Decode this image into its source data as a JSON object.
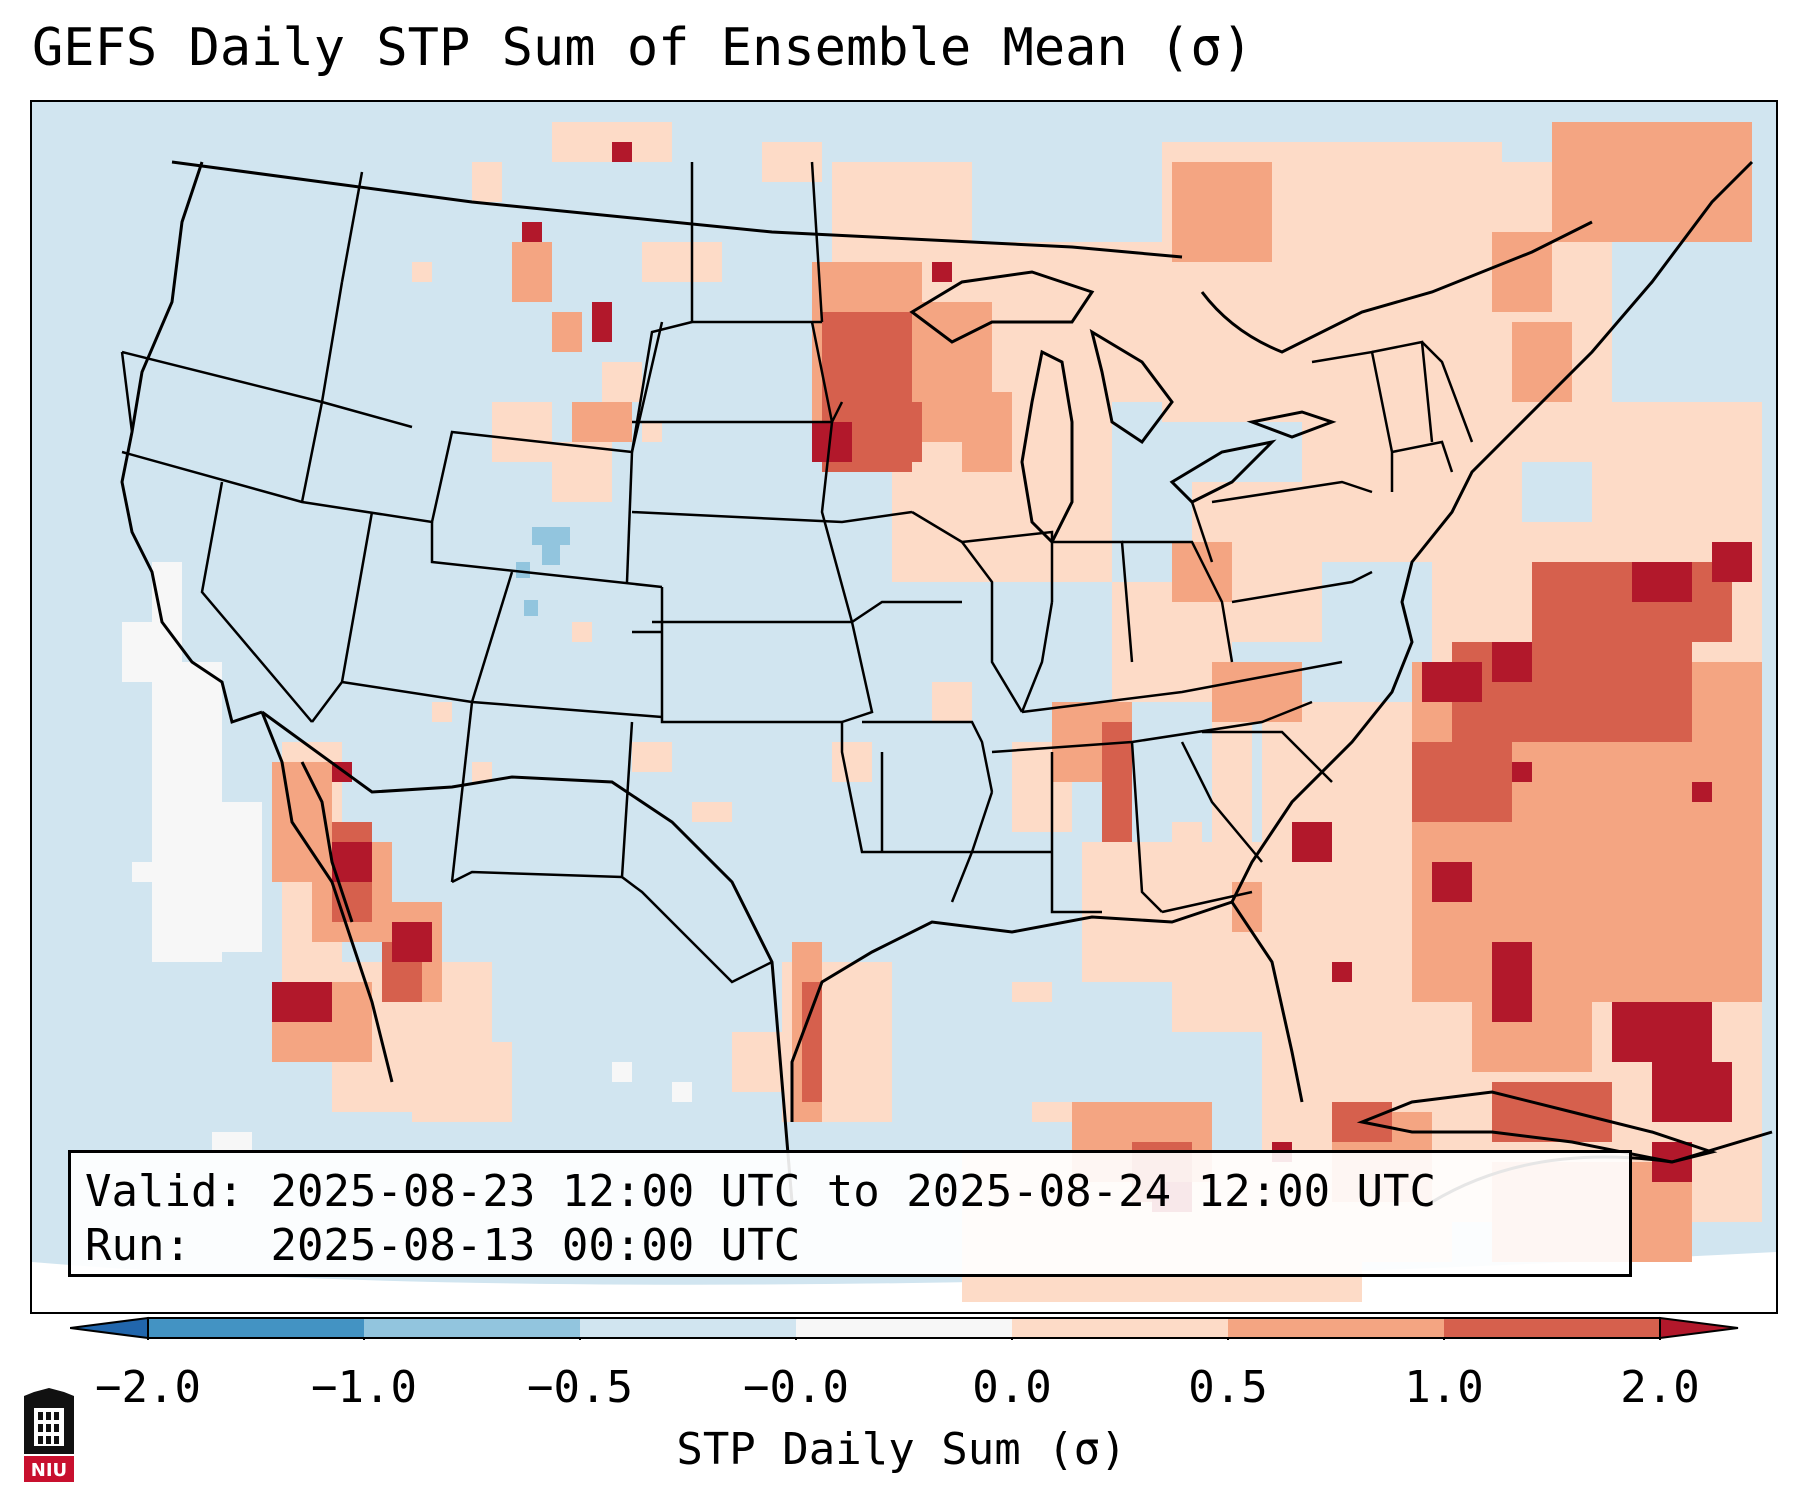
{
  "title": "GEFS Daily STP Sum of Ensemble Mean (σ)",
  "map": {
    "projection": "Lambert Conformal CONUS",
    "background_color": "#d1e5f0",
    "features": [
      "coastlines",
      "state-borders",
      "national-borders",
      "great-lakes"
    ]
  },
  "info": {
    "valid_label": "Valid:",
    "valid_value": "2025-08-23 12:00 UTC to 2025-08-24 12:00 UTC",
    "run_label": "Run:",
    "run_value": "2025-08-13 00:00 UTC"
  },
  "colorbar": {
    "label": "STP Daily Sum (σ)",
    "ticks": [
      "−2.0",
      "−1.0",
      "−0.5",
      "−0.0",
      "0.0",
      "0.5",
      "1.0",
      "2.0"
    ],
    "colors": [
      "#2166ac",
      "#4393c3",
      "#92c5de",
      "#d1e5f0",
      "#f7f7f7",
      "#fddbc7",
      "#f4a582",
      "#d6604d",
      "#b2182b"
    ]
  },
  "logo": {
    "text": "NIU"
  }
}
